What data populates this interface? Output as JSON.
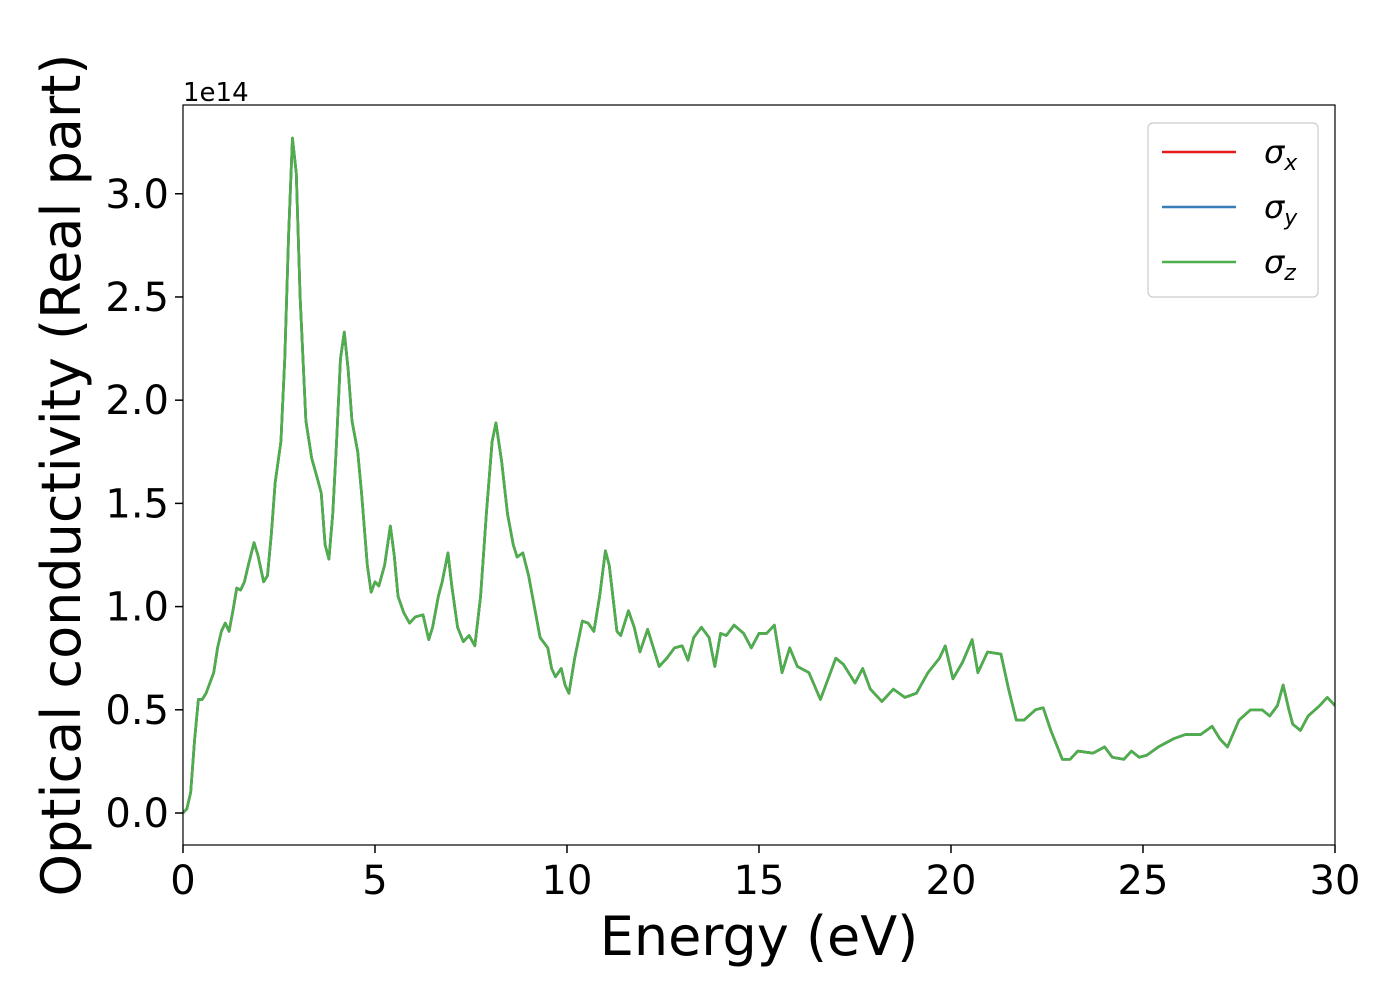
{
  "chart_data": {
    "type": "line",
    "xlabel": "Energy (eV)",
    "ylabel": "Optical conductivity (Real part)",
    "y_offset_label": "1e14",
    "xlim": [
      0,
      30
    ],
    "xticks": [
      0,
      5,
      10,
      15,
      20,
      25,
      30
    ],
    "ylim": [
      -0.155,
      3.43
    ],
    "yticks": [
      {
        "value": 0,
        "label": "0.0"
      },
      0.5,
      {
        "value": 1,
        "label": "1.0"
      },
      1.5,
      {
        "value": 2,
        "label": "2.0"
      },
      2.5,
      {
        "value": 3,
        "label": "3.0"
      }
    ],
    "grid": false,
    "legend": "upper right",
    "x": [
      0,
      0.1,
      0.2,
      0.3,
      0.4,
      0.5,
      0.6,
      0.8,
      0.9,
      1.0,
      1.1,
      1.2,
      1.3,
      1.4,
      1.5,
      1.6,
      1.7,
      1.85,
      1.95,
      2.1,
      2.2,
      2.3,
      2.4,
      2.55,
      2.65,
      2.75,
      2.85,
      2.95,
      3.05,
      3.2,
      3.35,
      3.5,
      3.6,
      3.7,
      3.8,
      3.9,
      4.0,
      4.1,
      4.2,
      4.3,
      4.4,
      4.55,
      4.65,
      4.8,
      4.9,
      5.0,
      5.1,
      5.25,
      5.4,
      5.5,
      5.6,
      5.75,
      5.9,
      6.05,
      6.25,
      6.4,
      6.5,
      6.65,
      6.75,
      6.9,
      7.0,
      7.15,
      7.3,
      7.45,
      7.6,
      7.75,
      7.9,
      8.05,
      8.15,
      8.3,
      8.45,
      8.6,
      8.7,
      8.85,
      9.0,
      9.15,
      9.3,
      9.5,
      9.6,
      9.7,
      9.85,
      9.95,
      10.05,
      10.2,
      10.4,
      10.55,
      10.7,
      10.85,
      11.0,
      11.1,
      11.3,
      11.4,
      11.6,
      11.75,
      11.9,
      12.1,
      12.25,
      12.4,
      12.6,
      12.8,
      13.0,
      13.15,
      13.3,
      13.5,
      13.7,
      13.85,
      14.0,
      14.15,
      14.35,
      14.6,
      14.8,
      15.0,
      15.2,
      15.4,
      15.6,
      15.8,
      16.0,
      16.3,
      16.6,
      16.8,
      17.0,
      17.2,
      17.5,
      17.7,
      17.9,
      18.2,
      18.5,
      18.8,
      19.1,
      19.4,
      19.7,
      19.85,
      20.05,
      20.3,
      20.55,
      20.7,
      20.95,
      21.3,
      21.5,
      21.7,
      21.9,
      22.2,
      22.4,
      22.6,
      22.9,
      23.1,
      23.3,
      23.7,
      24.0,
      24.2,
      24.5,
      24.7,
      24.9,
      25.1,
      25.4,
      25.8,
      26.1,
      26.5,
      26.8,
      27.0,
      27.2,
      27.5,
      27.8,
      28.1,
      28.3,
      28.5,
      28.65,
      28.8,
      28.9,
      29.1,
      29.3,
      29.6,
      29.8,
      30.0
    ],
    "series": [
      {
        "name": "σx",
        "color": "#e41a1c",
        "values": [
          0,
          0.02,
          0.1,
          0.35,
          0.55,
          0.55,
          0.58,
          0.68,
          0.8,
          0.88,
          0.92,
          0.88,
          0.98,
          1.09,
          1.08,
          1.12,
          1.2,
          1.31,
          1.25,
          1.12,
          1.15,
          1.35,
          1.6,
          1.8,
          2.2,
          2.8,
          3.27,
          3.1,
          2.5,
          1.9,
          1.72,
          1.62,
          1.55,
          1.3,
          1.23,
          1.45,
          1.8,
          2.2,
          2.33,
          2.15,
          1.9,
          1.75,
          1.55,
          1.2,
          1.07,
          1.12,
          1.1,
          1.2,
          1.39,
          1.25,
          1.05,
          0.97,
          0.92,
          0.95,
          0.96,
          0.84,
          0.9,
          1.05,
          1.12,
          1.26,
          1.1,
          0.9,
          0.83,
          0.86,
          0.81,
          1.05,
          1.45,
          1.8,
          1.89,
          1.7,
          1.45,
          1.3,
          1.24,
          1.26,
          1.15,
          1.0,
          0.85,
          0.8,
          0.7,
          0.66,
          0.7,
          0.62,
          0.58,
          0.75,
          0.93,
          0.92,
          0.88,
          1.05,
          1.27,
          1.2,
          0.88,
          0.86,
          0.98,
          0.9,
          0.78,
          0.89,
          0.8,
          0.71,
          0.75,
          0.8,
          0.81,
          0.74,
          0.85,
          0.9,
          0.85,
          0.71,
          0.87,
          0.86,
          0.91,
          0.87,
          0.8,
          0.87,
          0.87,
          0.91,
          0.68,
          0.8,
          0.71,
          0.68,
          0.55,
          0.65,
          0.75,
          0.72,
          0.63,
          0.7,
          0.6,
          0.54,
          0.6,
          0.56,
          0.58,
          0.68,
          0.75,
          0.81,
          0.65,
          0.73,
          0.84,
          0.68,
          0.78,
          0.77,
          0.6,
          0.45,
          0.45,
          0.5,
          0.51,
          0.4,
          0.26,
          0.26,
          0.3,
          0.29,
          0.32,
          0.27,
          0.26,
          0.3,
          0.27,
          0.28,
          0.32,
          0.36,
          0.38,
          0.38,
          0.42,
          0.36,
          0.32,
          0.45,
          0.5,
          0.5,
          0.47,
          0.52,
          0.62,
          0.5,
          0.43,
          0.4,
          0.47,
          0.52,
          0.56,
          0.52
        ]
      },
      {
        "name": "σy",
        "color": "#377eb8",
        "values": [
          0,
          0.02,
          0.1,
          0.35,
          0.55,
          0.55,
          0.58,
          0.68,
          0.8,
          0.88,
          0.92,
          0.88,
          0.98,
          1.09,
          1.08,
          1.12,
          1.2,
          1.31,
          1.25,
          1.12,
          1.15,
          1.35,
          1.6,
          1.8,
          2.2,
          2.8,
          3.27,
          3.1,
          2.5,
          1.9,
          1.72,
          1.62,
          1.55,
          1.3,
          1.23,
          1.45,
          1.8,
          2.2,
          2.33,
          2.15,
          1.9,
          1.75,
          1.55,
          1.2,
          1.07,
          1.12,
          1.1,
          1.2,
          1.39,
          1.25,
          1.05,
          0.97,
          0.92,
          0.95,
          0.96,
          0.84,
          0.9,
          1.05,
          1.12,
          1.26,
          1.1,
          0.9,
          0.83,
          0.86,
          0.81,
          1.05,
          1.45,
          1.8,
          1.89,
          1.7,
          1.45,
          1.3,
          1.24,
          1.26,
          1.15,
          1.0,
          0.85,
          0.8,
          0.7,
          0.66,
          0.7,
          0.62,
          0.58,
          0.75,
          0.93,
          0.92,
          0.88,
          1.05,
          1.27,
          1.2,
          0.88,
          0.86,
          0.98,
          0.9,
          0.78,
          0.89,
          0.8,
          0.71,
          0.75,
          0.8,
          0.81,
          0.74,
          0.85,
          0.9,
          0.85,
          0.71,
          0.87,
          0.86,
          0.91,
          0.87,
          0.8,
          0.87,
          0.87,
          0.91,
          0.68,
          0.8,
          0.71,
          0.68,
          0.55,
          0.65,
          0.75,
          0.72,
          0.63,
          0.7,
          0.6,
          0.54,
          0.6,
          0.56,
          0.58,
          0.68,
          0.75,
          0.81,
          0.65,
          0.73,
          0.84,
          0.68,
          0.78,
          0.77,
          0.6,
          0.45,
          0.45,
          0.5,
          0.51,
          0.4,
          0.26,
          0.26,
          0.3,
          0.29,
          0.32,
          0.27,
          0.26,
          0.3,
          0.27,
          0.28,
          0.32,
          0.36,
          0.38,
          0.38,
          0.42,
          0.36,
          0.32,
          0.45,
          0.5,
          0.5,
          0.47,
          0.52,
          0.62,
          0.5,
          0.43,
          0.4,
          0.47,
          0.52,
          0.56,
          0.52
        ]
      },
      {
        "name": "σz",
        "color": "#4daf4a",
        "values": [
          0,
          0.02,
          0.1,
          0.35,
          0.55,
          0.55,
          0.58,
          0.68,
          0.8,
          0.88,
          0.92,
          0.88,
          0.98,
          1.09,
          1.08,
          1.12,
          1.2,
          1.31,
          1.25,
          1.12,
          1.15,
          1.35,
          1.6,
          1.8,
          2.2,
          2.8,
          3.27,
          3.1,
          2.5,
          1.9,
          1.72,
          1.62,
          1.55,
          1.3,
          1.23,
          1.45,
          1.8,
          2.2,
          2.33,
          2.15,
          1.9,
          1.75,
          1.55,
          1.2,
          1.07,
          1.12,
          1.1,
          1.2,
          1.39,
          1.25,
          1.05,
          0.97,
          0.92,
          0.95,
          0.96,
          0.84,
          0.9,
          1.05,
          1.12,
          1.26,
          1.1,
          0.9,
          0.83,
          0.86,
          0.81,
          1.05,
          1.45,
          1.8,
          1.89,
          1.7,
          1.45,
          1.3,
          1.24,
          1.26,
          1.15,
          1.0,
          0.85,
          0.8,
          0.7,
          0.66,
          0.7,
          0.62,
          0.58,
          0.75,
          0.93,
          0.92,
          0.88,
          1.05,
          1.27,
          1.2,
          0.88,
          0.86,
          0.98,
          0.9,
          0.78,
          0.89,
          0.8,
          0.71,
          0.75,
          0.8,
          0.81,
          0.74,
          0.85,
          0.9,
          0.85,
          0.71,
          0.87,
          0.86,
          0.91,
          0.87,
          0.8,
          0.87,
          0.87,
          0.91,
          0.68,
          0.8,
          0.71,
          0.68,
          0.55,
          0.65,
          0.75,
          0.72,
          0.63,
          0.7,
          0.6,
          0.54,
          0.6,
          0.56,
          0.58,
          0.68,
          0.75,
          0.81,
          0.65,
          0.73,
          0.84,
          0.68,
          0.78,
          0.77,
          0.6,
          0.45,
          0.45,
          0.5,
          0.51,
          0.4,
          0.26,
          0.26,
          0.3,
          0.29,
          0.32,
          0.27,
          0.26,
          0.3,
          0.27,
          0.28,
          0.32,
          0.36,
          0.38,
          0.38,
          0.42,
          0.36,
          0.32,
          0.45,
          0.5,
          0.5,
          0.47,
          0.52,
          0.62,
          0.5,
          0.43,
          0.4,
          0.47,
          0.52,
          0.56,
          0.52
        ]
      }
    ]
  }
}
